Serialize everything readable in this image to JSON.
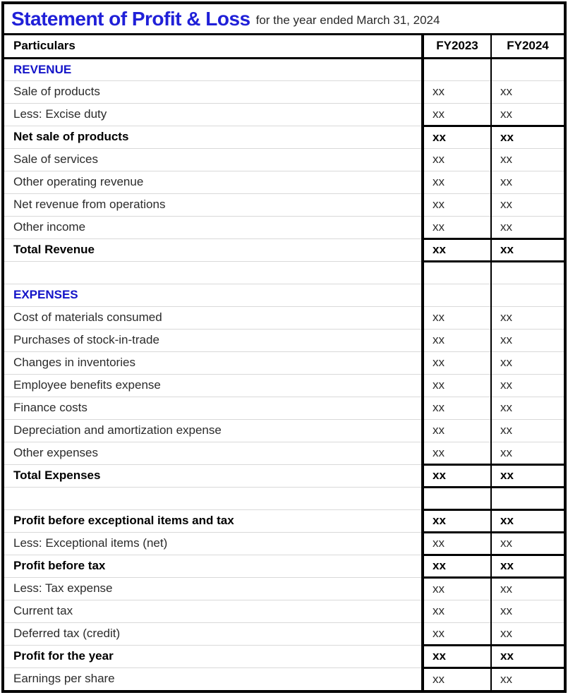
{
  "title": {
    "main": "Statement of Profit & Loss",
    "subtitle": "for the year ended March 31, 2024"
  },
  "colors": {
    "title_blue": "#2020d8",
    "section_blue": "#1414c8",
    "grid_gray": "#d9d9d9",
    "border_black": "#000000",
    "background": "#ffffff"
  },
  "table": {
    "headers": [
      "Particulars",
      "FY2023",
      "FY2024"
    ],
    "rows": [
      {
        "label": "REVENUE",
        "fy2023": "",
        "fy2024": "",
        "style": "section"
      },
      {
        "label": "Sale of products",
        "fy2023": "xx",
        "fy2024": "xx",
        "style": "normal"
      },
      {
        "label": "Less: Excise duty",
        "fy2023": "xx",
        "fy2024": "xx",
        "style": "normal"
      },
      {
        "label": "Net sale of products",
        "fy2023": "xx",
        "fy2024": "xx",
        "style": "subtotal"
      },
      {
        "label": "Sale of services",
        "fy2023": "xx",
        "fy2024": "xx",
        "style": "normal"
      },
      {
        "label": "Other operating revenue",
        "fy2023": "xx",
        "fy2024": "xx",
        "style": "normal"
      },
      {
        "label": "Net revenue from operations",
        "fy2023": "xx",
        "fy2024": "xx",
        "style": "normal"
      },
      {
        "label": "Other income",
        "fy2023": "xx",
        "fy2024": "xx",
        "style": "normal"
      },
      {
        "label": "Total Revenue",
        "fy2023": "xx",
        "fy2024": "xx",
        "style": "total"
      },
      {
        "label": "",
        "fy2023": "",
        "fy2024": "",
        "style": "empty"
      },
      {
        "label": "EXPENSES",
        "fy2023": "",
        "fy2024": "",
        "style": "section"
      },
      {
        "label": "Cost of materials consumed",
        "fy2023": "xx",
        "fy2024": "xx",
        "style": "normal"
      },
      {
        "label": "Purchases of stock-in-trade",
        "fy2023": "xx",
        "fy2024": "xx",
        "style": "normal"
      },
      {
        "label": "Changes in inventories",
        "fy2023": "xx",
        "fy2024": "xx",
        "style": "normal"
      },
      {
        "label": "Employee benefits expense",
        "fy2023": "xx",
        "fy2024": "xx",
        "style": "normal"
      },
      {
        "label": "Finance costs",
        "fy2023": "xx",
        "fy2024": "xx",
        "style": "normal"
      },
      {
        "label": "Depreciation and amortization expense",
        "fy2023": "xx",
        "fy2024": "xx",
        "style": "normal"
      },
      {
        "label": "Other expenses",
        "fy2023": "xx",
        "fy2024": "xx",
        "style": "normal"
      },
      {
        "label": "Total Expenses",
        "fy2023": "xx",
        "fy2024": "xx",
        "style": "total"
      },
      {
        "label": "",
        "fy2023": "",
        "fy2024": "",
        "style": "empty"
      },
      {
        "label": "Profit before exceptional items and tax",
        "fy2023": "xx",
        "fy2024": "xx",
        "style": "total"
      },
      {
        "label": "Less: Exceptional items (net)",
        "fy2023": "xx",
        "fy2024": "xx",
        "style": "normal"
      },
      {
        "label": "Profit before tax",
        "fy2023": "xx",
        "fy2024": "xx",
        "style": "total"
      },
      {
        "label": "Less: Tax expense",
        "fy2023": "xx",
        "fy2024": "xx",
        "style": "normal"
      },
      {
        "label": "Current tax",
        "fy2023": "xx",
        "fy2024": "xx",
        "style": "normal"
      },
      {
        "label": "Deferred tax (credit)",
        "fy2023": "xx",
        "fy2024": "xx",
        "style": "normal"
      },
      {
        "label": "Profit for the year",
        "fy2023": "xx",
        "fy2024": "xx",
        "style": "total"
      },
      {
        "label": "Earnings per share",
        "fy2023": "xx",
        "fy2024": "xx",
        "style": "normal"
      }
    ]
  }
}
